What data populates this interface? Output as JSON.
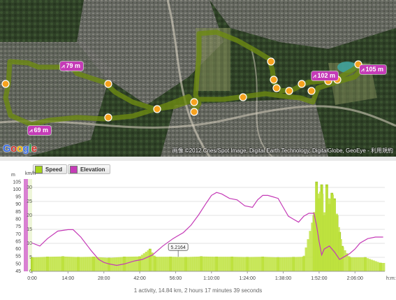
{
  "map": {
    "copyright": "画像 ©2012 Cnes/Spot Image, Digital Earth Technology, DigitalGlobe, GeoEye - 利用規約",
    "logo": {
      "g1": "G",
      "o1": "o",
      "o2": "o",
      "g2": "g",
      "l": "l",
      "e": "e"
    },
    "route_color": "#c9f23c",
    "marker_color": "#f6a21e",
    "elevation_badges": [
      {
        "label": "79 m"
      },
      {
        "label": "69 m"
      },
      {
        "label": "102 m"
      },
      {
        "label": "105 m"
      }
    ]
  },
  "chart": {
    "legend": [
      {
        "label": "Speed",
        "color": "#a6d41a"
      },
      {
        "label": "Elevation",
        "color": "#c53bb7"
      }
    ],
    "left_axis_unit": "m",
    "right_axis_unit": "km/h",
    "x_axis_unit": "h:m:s",
    "callout": "5.2164",
    "summary": "1 activity, 14.84 km, 2 hours 17 minutes 39 seconds"
  },
  "chart_data": {
    "type": "line",
    "x_unit": "minutes",
    "x_tick_labels": [
      "0:00",
      "14:00",
      "28:00",
      "42:00",
      "56:00",
      "1:10:00",
      "1:24:00",
      "1:38:00",
      "1:52:00",
      "2:06:00"
    ],
    "xlim": [
      0,
      137.65
    ],
    "y_left": {
      "label": "m",
      "ticks": [
        45,
        50,
        55,
        60,
        65,
        70,
        75,
        80,
        85,
        90,
        95,
        100,
        105
      ],
      "lim": [
        45,
        107
      ]
    },
    "y_right": {
      "label": "km/h",
      "ticks": [
        0,
        5,
        10,
        15,
        20,
        25,
        30
      ],
      "lim": [
        0,
        33
      ]
    },
    "series": [
      {
        "name": "Elevation",
        "axis": "left",
        "color": "#c53bb7",
        "points": [
          [
            0,
            64
          ],
          [
            3,
            62
          ],
          [
            6,
            67
          ],
          [
            10,
            72
          ],
          [
            14,
            73
          ],
          [
            16,
            73
          ],
          [
            19,
            68
          ],
          [
            23,
            59
          ],
          [
            26,
            53
          ],
          [
            28,
            51
          ],
          [
            30,
            50
          ],
          [
            33,
            49
          ],
          [
            36,
            50
          ],
          [
            40,
            52
          ],
          [
            43,
            53
          ],
          [
            47,
            56
          ],
          [
            51,
            62
          ],
          [
            55,
            67
          ],
          [
            59,
            71
          ],
          [
            62,
            76
          ],
          [
            65,
            83
          ],
          [
            68,
            91
          ],
          [
            70,
            96
          ],
          [
            72,
            98
          ],
          [
            74,
            97
          ],
          [
            77,
            94
          ],
          [
            80,
            93
          ],
          [
            83,
            89
          ],
          [
            86,
            88
          ],
          [
            88,
            93
          ],
          [
            90,
            96
          ],
          [
            92,
            96
          ],
          [
            94,
            95
          ],
          [
            96,
            94
          ],
          [
            98,
            88
          ],
          [
            100,
            82
          ],
          [
            102,
            80
          ],
          [
            104,
            78
          ],
          [
            106,
            82
          ],
          [
            108,
            84
          ],
          [
            110,
            84
          ],
          [
            111,
            76
          ],
          [
            112,
            65
          ],
          [
            113,
            56
          ],
          [
            114,
            60
          ],
          [
            116,
            62
          ],
          [
            118,
            58
          ],
          [
            120,
            53
          ],
          [
            122,
            55
          ],
          [
            124,
            57
          ],
          [
            126,
            60
          ],
          [
            128,
            64
          ],
          [
            131,
            67
          ],
          [
            134,
            68
          ],
          [
            137,
            68
          ]
        ]
      },
      {
        "name": "Speed",
        "axis": "right",
        "color": "#a6d41a",
        "style": "bars",
        "points": [
          [
            0,
            5
          ],
          [
            6,
            5.2
          ],
          [
            12,
            5.3
          ],
          [
            18,
            5.1
          ],
          [
            24,
            5.2
          ],
          [
            30,
            4.8
          ],
          [
            36,
            5.2
          ],
          [
            42,
            5.3
          ],
          [
            46,
            8
          ],
          [
            48,
            5.2
          ],
          [
            54,
            5.2
          ],
          [
            60,
            5.1
          ],
          [
            66,
            5.3
          ],
          [
            72,
            5.2
          ],
          [
            78,
            5.2
          ],
          [
            84,
            5.1
          ],
          [
            90,
            5.2
          ],
          [
            96,
            5
          ],
          [
            102,
            5.1
          ],
          [
            106,
            5.2
          ],
          [
            110,
            20
          ],
          [
            111,
            32
          ],
          [
            112,
            26
          ],
          [
            113,
            31
          ],
          [
            114,
            20
          ],
          [
            115,
            31
          ],
          [
            116,
            24
          ],
          [
            117,
            28
          ],
          [
            118,
            26
          ],
          [
            119,
            20
          ],
          [
            120,
            14
          ],
          [
            121,
            9
          ],
          [
            124,
            5
          ],
          [
            130,
            5
          ],
          [
            136,
            3
          ]
        ]
      }
    ],
    "annotations": [
      {
        "x": 57,
        "y": 5.2164,
        "text": "5.2164"
      }
    ],
    "grid": true
  }
}
